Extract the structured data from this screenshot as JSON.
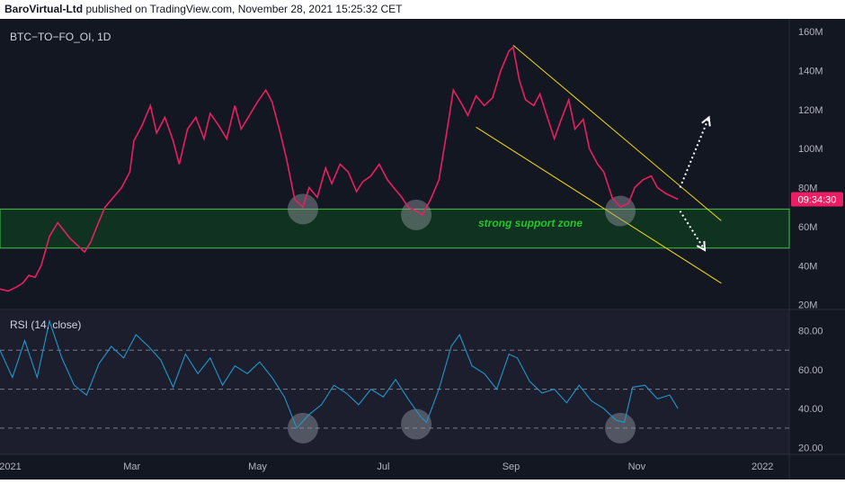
{
  "header": {
    "author": "BaroVirtual-Ltd",
    "rest": "published on TradingView.com, November 28, 2021 15:25:32 CET"
  },
  "colors": {
    "background": "#131722",
    "price_line": "#e91e63",
    "rsi_line": "#2196c9",
    "channel": "#f5d90a",
    "support_zone_fill": "#0f3320",
    "support_zone_border": "#3fc24a",
    "support_zone_text": "#27c42d",
    "axis_text": "#b2b5be",
    "rsi_bg": "#1c1e2e",
    "highlight_circle": "#9598a1",
    "price_tag": "#e91e63"
  },
  "chart_data": [
    {
      "type": "line",
      "title": "BTC−TO−FO_OI, 1D",
      "y_unit": "M",
      "ylim": [
        18,
        166
      ],
      "y_ticks": [
        "160M",
        "140M",
        "120M",
        "100M",
        "80M",
        "60M",
        "40M",
        "20M"
      ],
      "x_ticks": [
        "2021",
        "Mar",
        "May",
        "Jul",
        "Sep",
        "Nov",
        "2022"
      ],
      "x_range": [
        "2020-12-27",
        "2022-01-14"
      ],
      "current_price_label": "09:34:30",
      "current_value": 74,
      "series": [
        {
          "values": [
            [
              "2020-12-27",
              28
            ],
            [
              "2020-12-31",
              27
            ],
            [
              "2021-01-04",
              29
            ],
            [
              "2021-01-07",
              31
            ],
            [
              "2021-01-10",
              35
            ],
            [
              "2021-01-13",
              34
            ],
            [
              "2021-01-16",
              40
            ],
            [
              "2021-01-20",
              55
            ],
            [
              "2021-01-24",
              62
            ],
            [
              "2021-01-27",
              58
            ],
            [
              "2021-01-30",
              54
            ],
            [
              "2021-02-03",
              50
            ],
            [
              "2021-02-06",
              47
            ],
            [
              "2021-02-09",
              52
            ],
            [
              "2021-02-12",
              60
            ],
            [
              "2021-02-16",
              70
            ],
            [
              "2021-02-20",
              75
            ],
            [
              "2021-02-24",
              80
            ],
            [
              "2021-02-28",
              88
            ],
            [
              "2021-03-02",
              104
            ],
            [
              "2021-03-06",
              112
            ],
            [
              "2021-03-10",
              122
            ],
            [
              "2021-03-13",
              108
            ],
            [
              "2021-03-17",
              116
            ],
            [
              "2021-03-21",
              104
            ],
            [
              "2021-03-24",
              92
            ],
            [
              "2021-03-28",
              110
            ],
            [
              "2021-04-01",
              116
            ],
            [
              "2021-04-05",
              105
            ],
            [
              "2021-04-08",
              118
            ],
            [
              "2021-04-12",
              112
            ],
            [
              "2021-04-16",
              105
            ],
            [
              "2021-04-20",
              122
            ],
            [
              "2021-04-23",
              110
            ],
            [
              "2021-04-27",
              117
            ],
            [
              "2021-05-01",
              124
            ],
            [
              "2021-05-05",
              130
            ],
            [
              "2021-05-08",
              124
            ],
            [
              "2021-05-12",
              108
            ],
            [
              "2021-05-15",
              95
            ],
            [
              "2021-05-19",
              74
            ],
            [
              "2021-05-23",
              70
            ],
            [
              "2021-05-26",
              80
            ],
            [
              "2021-05-30",
              75
            ],
            [
              "2021-06-03",
              90
            ],
            [
              "2021-06-06",
              82
            ],
            [
              "2021-06-10",
              92
            ],
            [
              "2021-06-14",
              88
            ],
            [
              "2021-06-18",
              78
            ],
            [
              "2021-06-21",
              83
            ],
            [
              "2021-06-25",
              86
            ],
            [
              "2021-06-29",
              92
            ],
            [
              "2021-07-03",
              84
            ],
            [
              "2021-07-06",
              80
            ],
            [
              "2021-07-10",
              75
            ],
            [
              "2021-07-13",
              70
            ],
            [
              "2021-07-17",
              68
            ],
            [
              "2021-07-20",
              66
            ],
            [
              "2021-07-24",
              74
            ],
            [
              "2021-07-28",
              84
            ],
            [
              "2021-08-01",
              110
            ],
            [
              "2021-08-04",
              130
            ],
            [
              "2021-08-08",
              123
            ],
            [
              "2021-08-11",
              117
            ],
            [
              "2021-08-15",
              127
            ],
            [
              "2021-08-19",
              122
            ],
            [
              "2021-08-23",
              126
            ],
            [
              "2021-08-27",
              140
            ],
            [
              "2021-08-31",
              150
            ],
            [
              "2021-09-02",
              152
            ],
            [
              "2021-09-05",
              135
            ],
            [
              "2021-09-08",
              125
            ],
            [
              "2021-09-12",
              122
            ],
            [
              "2021-09-15",
              128
            ],
            [
              "2021-09-18",
              118
            ],
            [
              "2021-09-22",
              105
            ],
            [
              "2021-09-25",
              114
            ],
            [
              "2021-09-29",
              125
            ],
            [
              "2021-10-02",
              110
            ],
            [
              "2021-10-06",
              115
            ],
            [
              "2021-10-09",
              100
            ],
            [
              "2021-10-13",
              92
            ],
            [
              "2021-10-16",
              88
            ],
            [
              "2021-10-20",
              75
            ],
            [
              "2021-10-24",
              70
            ],
            [
              "2021-10-28",
              72
            ],
            [
              "2021-10-31",
              80
            ],
            [
              "2021-11-04",
              84
            ],
            [
              "2021-11-08",
              86
            ],
            [
              "2021-11-11",
              80
            ],
            [
              "2021-11-15",
              77
            ],
            [
              "2021-11-19",
              75
            ],
            [
              "2021-11-21",
              74
            ]
          ]
        }
      ]
    },
    {
      "type": "line",
      "title": "RSI (14, close)",
      "ylim": [
        17,
        90
      ],
      "y_ticks": [
        "80.00",
        "60.00",
        "40.00",
        "20.00"
      ],
      "reference_lines": [
        70,
        50,
        30
      ],
      "series": [
        {
          "values": [
            [
              "2020-12-27",
              70
            ],
            [
              "2021-01-02",
              56
            ],
            [
              "2021-01-08",
              75
            ],
            [
              "2021-01-14",
              56
            ],
            [
              "2021-01-20",
              85
            ],
            [
              "2021-01-26",
              66
            ],
            [
              "2021-02-01",
              52
            ],
            [
              "2021-02-07",
              47
            ],
            [
              "2021-02-13",
              63
            ],
            [
              "2021-02-19",
              72
            ],
            [
              "2021-02-25",
              66
            ],
            [
              "2021-03-03",
              78
            ],
            [
              "2021-03-09",
              72
            ],
            [
              "2021-03-15",
              65
            ],
            [
              "2021-03-21",
              51
            ],
            [
              "2021-03-27",
              68
            ],
            [
              "2021-04-02",
              58
            ],
            [
              "2021-04-08",
              66
            ],
            [
              "2021-04-14",
              52
            ],
            [
              "2021-04-20",
              62
            ],
            [
              "2021-04-26",
              58
            ],
            [
              "2021-05-02",
              64
            ],
            [
              "2021-05-08",
              56
            ],
            [
              "2021-05-14",
              46
            ],
            [
              "2021-05-20",
              30
            ],
            [
              "2021-05-26",
              37
            ],
            [
              "2021-06-01",
              42
            ],
            [
              "2021-06-07",
              52
            ],
            [
              "2021-06-13",
              48
            ],
            [
              "2021-06-19",
              42
            ],
            [
              "2021-06-25",
              50
            ],
            [
              "2021-07-01",
              46
            ],
            [
              "2021-07-07",
              55
            ],
            [
              "2021-07-13",
              45
            ],
            [
              "2021-07-19",
              36
            ],
            [
              "2021-07-22",
              33
            ],
            [
              "2021-07-28",
              50
            ],
            [
              "2021-08-03",
              72
            ],
            [
              "2021-08-07",
              78
            ],
            [
              "2021-08-13",
              62
            ],
            [
              "2021-08-19",
              58
            ],
            [
              "2021-08-25",
              50
            ],
            [
              "2021-08-31",
              68
            ],
            [
              "2021-09-04",
              66
            ],
            [
              "2021-09-10",
              54
            ],
            [
              "2021-09-16",
              48
            ],
            [
              "2021-09-22",
              50
            ],
            [
              "2021-09-28",
              43
            ],
            [
              "2021-10-04",
              52
            ],
            [
              "2021-10-10",
              44
            ],
            [
              "2021-10-16",
              40
            ],
            [
              "2021-10-22",
              34
            ],
            [
              "2021-10-26",
              33
            ],
            [
              "2021-10-30",
              51
            ],
            [
              "2021-11-05",
              52
            ],
            [
              "2021-11-11",
              45
            ],
            [
              "2021-11-17",
              47
            ],
            [
              "2021-11-21",
              40
            ]
          ]
        }
      ]
    }
  ],
  "annotations": {
    "support_zone_label": "strong support zone",
    "support_zone_range": [
      49,
      69
    ],
    "channel_upper": [
      [
        "2021-09-02",
        153
      ],
      [
        "2021-12-12",
        63
      ]
    ],
    "channel_lower": [
      [
        "2021-08-15",
        111
      ],
      [
        "2021-12-12",
        31
      ]
    ],
    "price_circles": [
      [
        "2021-05-23",
        69
      ],
      [
        "2021-07-17",
        66
      ],
      [
        "2021-10-24",
        68
      ]
    ],
    "rsi_circles": [
      [
        "2021-05-23",
        30
      ],
      [
        "2021-07-17",
        32
      ],
      [
        "2021-10-24",
        30
      ]
    ],
    "arrow_up": [
      [
        "2021-11-22",
        80
      ],
      [
        "2021-12-06",
        116
      ]
    ],
    "arrow_down": [
      [
        "2021-11-22",
        68
      ],
      [
        "2021-12-04",
        48
      ]
    ]
  }
}
